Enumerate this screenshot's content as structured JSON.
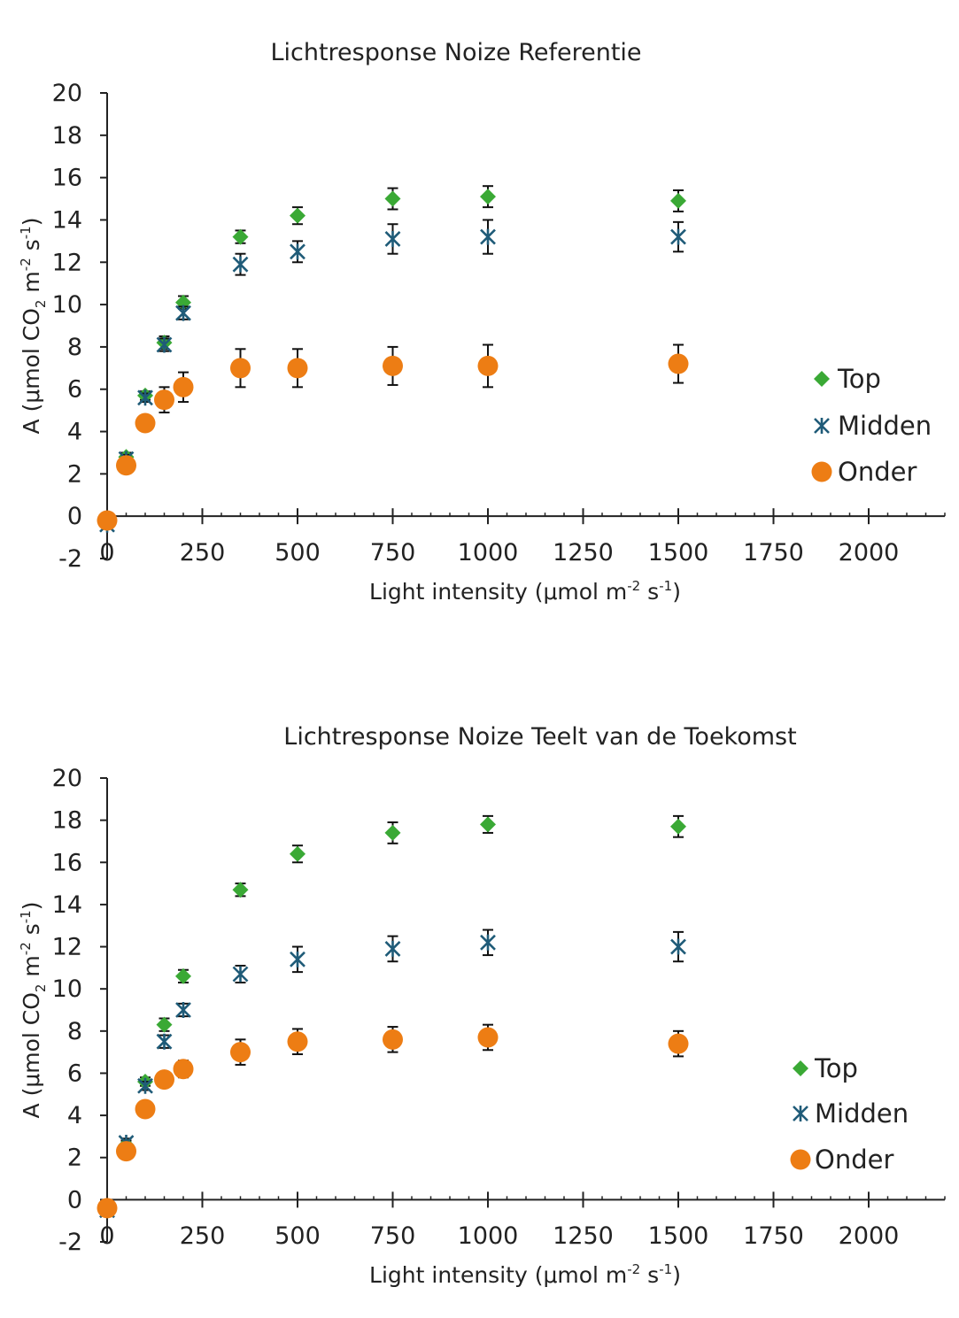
{
  "chart_data": [
    {
      "type": "scatter",
      "title": "Lichtresponse Noize Referentie",
      "xlabel": {
        "main": "Light intensity (μmol m",
        "sup1": "-2",
        "mid": " s",
        "sup2": "-1",
        "end": ")"
      },
      "ylabel": {
        "main": "A (μmol CO",
        "sub": "2",
        "mid1": " m",
        "sup1": "-2",
        "mid2": " s",
        "sup2": "-1",
        "end": ")"
      },
      "xlim": [
        0,
        2200
      ],
      "ylim": [
        -2,
        20
      ],
      "x_ticks": [
        0,
        250,
        500,
        750,
        1000,
        1250,
        1500,
        1750,
        2000
      ],
      "y_ticks": [
        -2,
        0,
        2,
        4,
        6,
        8,
        10,
        12,
        14,
        16,
        18,
        20
      ],
      "x_tick_labels": [
        "0",
        "250",
        "500",
        "750",
        "1000",
        "1250",
        "1500",
        "1750",
        "2000"
      ],
      "y_tick_labels": [
        "-2",
        "0",
        "2",
        "4",
        "6",
        "8",
        "10",
        "12",
        "14",
        "16",
        "18",
        "20"
      ],
      "legend_position": "right",
      "x": [
        0,
        50,
        100,
        150,
        200,
        350,
        500,
        750,
        1000,
        1500
      ],
      "series": [
        {
          "name": "Top",
          "marker": "diamond",
          "color": "#3aa935",
          "y": [
            -0.2,
            2.8,
            5.7,
            8.2,
            10.1,
            13.2,
            14.2,
            15.0,
            15.1,
            14.9
          ],
          "err": [
            0.1,
            0.2,
            0.2,
            0.3,
            0.3,
            0.3,
            0.4,
            0.5,
            0.5,
            0.5
          ]
        },
        {
          "name": "Midden",
          "marker": "asterisk",
          "color": "#1f5b78",
          "y": [
            -0.4,
            2.7,
            5.6,
            8.1,
            9.6,
            11.9,
            12.5,
            13.1,
            13.2,
            13.2
          ],
          "err": [
            0.1,
            0.2,
            0.2,
            0.3,
            0.3,
            0.5,
            0.5,
            0.7,
            0.8,
            0.7
          ]
        },
        {
          "name": "Onder",
          "marker": "circle",
          "color": "#ed7d14",
          "y": [
            -0.2,
            2.4,
            4.4,
            5.5,
            6.1,
            7.0,
            7.0,
            7.1,
            7.1,
            7.2
          ],
          "err": [
            0.1,
            0.2,
            0.2,
            0.6,
            0.7,
            0.9,
            0.9,
            0.9,
            1.0,
            0.9
          ]
        }
      ]
    },
    {
      "type": "scatter",
      "title": "Lichtresponse Noize Teelt van de Toekomst",
      "xlabel": {
        "main": "Light intensity (μmol m",
        "sup1": "-2",
        "mid": " s",
        "sup2": "-1",
        "end": ")"
      },
      "ylabel": {
        "main": "A (μmol CO",
        "sub": "2",
        "mid1": " m",
        "sup1": "-2",
        "mid2": " s",
        "sup2": "-1",
        "end": ")"
      },
      "xlim": [
        0,
        2200
      ],
      "ylim": [
        -2,
        20
      ],
      "x_ticks": [
        0,
        250,
        500,
        750,
        1000,
        1250,
        1500,
        1750,
        2000
      ],
      "y_ticks": [
        -2,
        0,
        2,
        4,
        6,
        8,
        10,
        12,
        14,
        16,
        18,
        20
      ],
      "x_tick_labels": [
        "0",
        "250",
        "500",
        "750",
        "1000",
        "1250",
        "1500",
        "1750",
        "2000"
      ],
      "y_tick_labels": [
        "-2",
        "0",
        "2",
        "4",
        "6",
        "8",
        "10",
        "12",
        "14",
        "16",
        "18",
        "20"
      ],
      "legend_position": "right",
      "x": [
        0,
        50,
        100,
        150,
        200,
        350,
        500,
        750,
        1000,
        1500
      ],
      "series": [
        {
          "name": "Top",
          "marker": "diamond",
          "color": "#3aa935",
          "y": [
            -0.5,
            2.6,
            5.6,
            8.3,
            10.6,
            14.7,
            16.4,
            17.4,
            17.8,
            17.7
          ],
          "err": [
            0.1,
            0.2,
            0.2,
            0.3,
            0.3,
            0.3,
            0.4,
            0.5,
            0.4,
            0.5
          ]
        },
        {
          "name": "Midden",
          "marker": "asterisk",
          "color": "#1f5b78",
          "y": [
            -0.5,
            2.7,
            5.4,
            7.5,
            9.0,
            10.7,
            11.4,
            11.9,
            12.2,
            12.0
          ],
          "err": [
            0.1,
            0.2,
            0.2,
            0.3,
            0.3,
            0.4,
            0.6,
            0.6,
            0.6,
            0.7
          ]
        },
        {
          "name": "Onder",
          "marker": "circle",
          "color": "#ed7d14",
          "y": [
            -0.4,
            2.3,
            4.3,
            5.7,
            6.2,
            7.0,
            7.5,
            7.6,
            7.7,
            7.4
          ],
          "err": [
            0.1,
            0.2,
            0.2,
            0.3,
            0.4,
            0.6,
            0.6,
            0.6,
            0.6,
            0.6
          ]
        }
      ]
    }
  ]
}
